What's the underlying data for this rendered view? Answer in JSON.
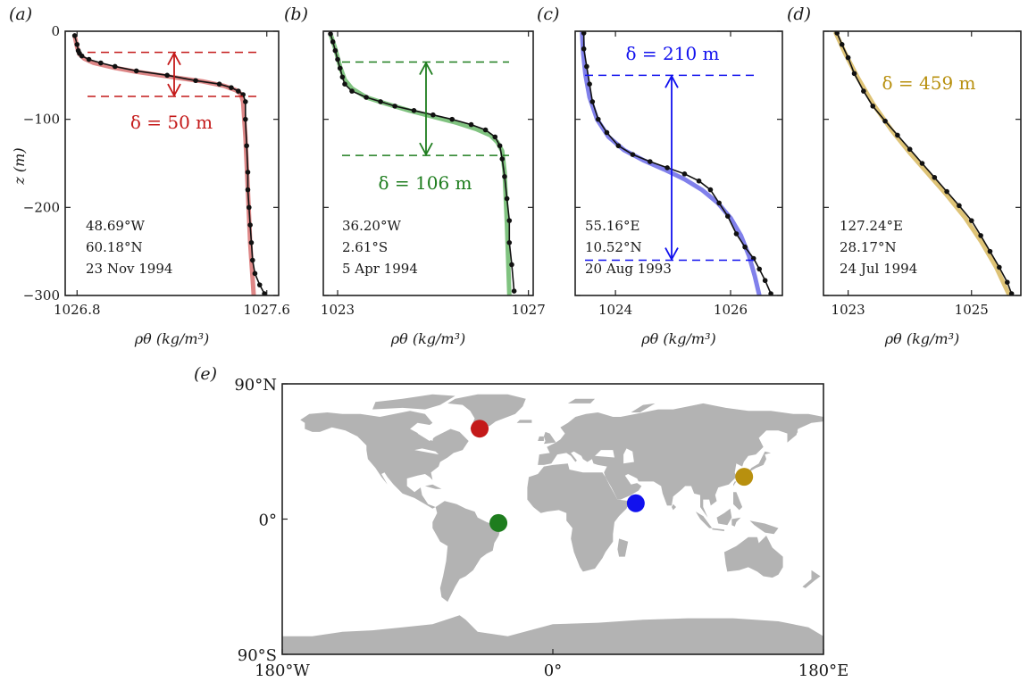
{
  "chart_data": [
    {
      "type": "line",
      "panel": "(a)",
      "xlabel": "ρθ (kg/m³)",
      "ylabel": "z (m)",
      "xlim": [
        1026.75,
        1027.65
      ],
      "ylim": [
        -300,
        0
      ],
      "xticks": [
        1026.8,
        1027.6
      ],
      "xtick_labels": [
        "1026.8",
        "1027.6"
      ],
      "yticks": [
        0,
        -100,
        -200,
        -300
      ],
      "ytick_labels": [
        "0",
        "−100",
        "−200",
        "−300"
      ],
      "color": "#c41a1a",
      "fit_color": "#d87272",
      "location": [
        "48.69°W",
        "60.18°N",
        "23 Nov 1994"
      ],
      "delta_label": "δ = 50 m",
      "thickness": {
        "top": -24,
        "bottom": -74
      },
      "series": [
        {
          "kind": "observations",
          "x": [
            1026.79,
            1026.8,
            1026.805,
            1026.81,
            1026.82,
            1026.85,
            1026.9,
            1026.96,
            1027.05,
            1027.18,
            1027.3,
            1027.4,
            1027.45,
            1027.48,
            1027.5,
            1027.51,
            1027.51,
            1027.515,
            1027.52,
            1027.52,
            1027.525,
            1027.53,
            1027.535,
            1027.54,
            1027.55,
            1027.57,
            1027.59
          ],
          "z": [
            -5,
            -15,
            -22,
            -25,
            -28,
            -32,
            -36,
            -40,
            -45,
            -50,
            -56,
            -60,
            -64,
            -68,
            -72,
            -80,
            -100,
            -130,
            -160,
            -180,
            -200,
            -220,
            -240,
            -260,
            -275,
            -288,
            -298
          ]
        },
        {
          "kind": "fit",
          "x": [
            1026.79,
            1026.8,
            1026.81,
            1026.83,
            1026.87,
            1026.95,
            1027.05,
            1027.2,
            1027.33,
            1027.42,
            1027.47,
            1027.49,
            1027.5,
            1027.51,
            1027.52,
            1027.53,
            1027.545
          ],
          "z": [
            -5,
            -18,
            -26,
            -31,
            -36,
            -41,
            -46,
            -52,
            -57,
            -62,
            -67,
            -71,
            -80,
            -120,
            -180,
            -240,
            -300
          ]
        }
      ]
    },
    {
      "type": "line",
      "panel": "(b)",
      "xlabel": "ρθ (kg/m³)",
      "xlim": [
        1022.7,
        1027.1
      ],
      "ylim": [
        -300,
        0
      ],
      "xticks": [
        1023,
        1027
      ],
      "xtick_labels": [
        "1023",
        "1027"
      ],
      "color": "#1e7d1e",
      "fit_color": "#6ab86a",
      "location": [
        "36.20°W",
        "2.61°S",
        "5 Apr 1994"
      ],
      "delta_label": "δ = 106 m",
      "thickness": {
        "top": -35,
        "bottom": -141
      },
      "series": [
        {
          "kind": "observations",
          "x": [
            1022.85,
            1022.9,
            1022.95,
            1023.0,
            1023.05,
            1023.1,
            1023.15,
            1023.3,
            1023.6,
            1023.9,
            1024.2,
            1024.6,
            1025.0,
            1025.4,
            1025.8,
            1026.1,
            1026.3,
            1026.4,
            1026.45,
            1026.5,
            1026.55,
            1026.6,
            1026.6,
            1026.65,
            1026.7
          ],
          "z": [
            -3,
            -12,
            -22,
            -32,
            -42,
            -52,
            -60,
            -68,
            -75,
            -80,
            -85,
            -90,
            -95,
            -100,
            -106,
            -112,
            -120,
            -130,
            -145,
            -165,
            -190,
            -215,
            -240,
            -265,
            -295
          ]
        },
        {
          "kind": "fit",
          "x": [
            1022.85,
            1022.95,
            1023.05,
            1023.15,
            1023.3,
            1023.6,
            1024.0,
            1024.5,
            1025.0,
            1025.5,
            1025.9,
            1026.2,
            1026.35,
            1026.45,
            1026.5,
            1026.55,
            1026.6
          ],
          "z": [
            -3,
            -20,
            -40,
            -55,
            -65,
            -75,
            -82,
            -90,
            -97,
            -104,
            -111,
            -118,
            -126,
            -136,
            -160,
            -220,
            -300
          ]
        }
      ]
    },
    {
      "type": "line",
      "panel": "(c)",
      "xlabel": "ρθ (kg/m³)",
      "xlim": [
        1023.3,
        1026.9
      ],
      "ylim": [
        -300,
        0
      ],
      "xticks": [
        1024,
        1026
      ],
      "xtick_labels": [
        "1024",
        "1026"
      ],
      "color": "#1111ee",
      "fit_color": "#6a6ae8",
      "location": [
        "55.16°E",
        "10.52°N",
        "20 Aug 1993"
      ],
      "delta_label": "δ = 210 m",
      "thickness": {
        "top": -50,
        "bottom": -260
      },
      "series": [
        {
          "kind": "observations",
          "x": [
            1023.45,
            1023.45,
            1023.5,
            1023.55,
            1023.6,
            1023.7,
            1023.85,
            1024.05,
            1024.3,
            1024.6,
            1024.9,
            1025.2,
            1025.45,
            1025.65,
            1025.8,
            1025.95,
            1026.1,
            1026.25,
            1026.4,
            1026.5,
            1026.6,
            1026.7
          ],
          "z": [
            -2,
            -20,
            -40,
            -60,
            -80,
            -100,
            -115,
            -130,
            -140,
            -148,
            -155,
            -162,
            -170,
            -180,
            -195,
            -210,
            -230,
            -245,
            -258,
            -270,
            -283,
            -298
          ]
        },
        {
          "kind": "fit",
          "x": [
            1023.42,
            1023.44,
            1023.48,
            1023.55,
            1023.68,
            1023.88,
            1024.15,
            1024.5,
            1024.85,
            1025.2,
            1025.5,
            1025.78,
            1026.0,
            1026.18,
            1026.32,
            1026.42,
            1026.5
          ],
          "z": [
            -2,
            -25,
            -50,
            -75,
            -100,
            -120,
            -135,
            -147,
            -157,
            -168,
            -180,
            -195,
            -212,
            -232,
            -255,
            -278,
            -300
          ]
        }
      ]
    },
    {
      "type": "line",
      "panel": "(d)",
      "xlabel": "ρθ (kg/m³)",
      "xlim": [
        1022.6,
        1025.8
      ],
      "ylim": [
        -300,
        0
      ],
      "xticks": [
        1023,
        1025
      ],
      "xtick_labels": [
        "1023",
        "1025"
      ],
      "color": "#b8900f",
      "fit_color": "#d8b85e",
      "location": [
        "127.24°E",
        "28.17°N",
        "24 Jul 1994"
      ],
      "delta_label": "δ = 459 m",
      "series": [
        {
          "kind": "observations",
          "x": [
            1022.82,
            1022.9,
            1023.0,
            1023.1,
            1023.25,
            1023.4,
            1023.6,
            1023.8,
            1024.0,
            1024.2,
            1024.4,
            1024.6,
            1024.8,
            1025.0,
            1025.15,
            1025.3,
            1025.45,
            1025.58,
            1025.65
          ],
          "z": [
            -2,
            -15,
            -30,
            -48,
            -68,
            -85,
            -102,
            -118,
            -134,
            -150,
            -166,
            -182,
            -198,
            -215,
            -232,
            -250,
            -268,
            -285,
            -298
          ]
        },
        {
          "kind": "fit",
          "x": [
            1022.8,
            1022.95,
            1023.15,
            1023.4,
            1023.7,
            1024.0,
            1024.3,
            1024.6,
            1024.9,
            1025.15,
            1025.4,
            1025.6
          ],
          "z": [
            -2,
            -25,
            -52,
            -82,
            -112,
            -138,
            -162,
            -186,
            -212,
            -238,
            -268,
            -298
          ]
        }
      ]
    },
    {
      "type": "scatter",
      "panel": "(e)",
      "xlim": [
        -180,
        180
      ],
      "ylim": [
        -90,
        90
      ],
      "xtick_labels": [
        "180°W",
        "0°",
        "180°E"
      ],
      "ytick_labels": [
        "90°N",
        "0°",
        "90°S"
      ],
      "points": [
        {
          "lon": -48.69,
          "lat": 60.18,
          "color": "#c41a1a"
        },
        {
          "lon": -36.2,
          "lat": -2.61,
          "color": "#1e7d1e"
        },
        {
          "lon": 55.16,
          "lat": 10.52,
          "color": "#1111ee"
        },
        {
          "lon": 127.24,
          "lat": 28.17,
          "color": "#b8900f"
        }
      ],
      "land_color": "#b3b3b3"
    }
  ]
}
